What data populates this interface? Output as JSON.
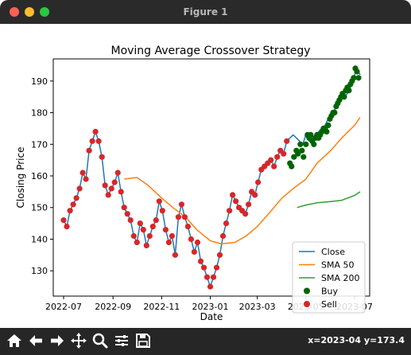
{
  "window": {
    "title": "Figure 1"
  },
  "status": {
    "coords": "x=2023-04 y=173.4"
  },
  "colors": {
    "close": "#1f77b4",
    "sma50": "#ff7f0e",
    "sma200": "#2ca02c",
    "buy": "#006400",
    "sell": "#d62728"
  },
  "toolbar": [
    "home-icon",
    "back-icon",
    "forward-icon",
    "pan-icon",
    "zoom-icon",
    "configure-icon",
    "save-icon"
  ],
  "chart_data": {
    "type": "line",
    "title": "Moving Average Crossover Strategy",
    "xlabel": "Date",
    "ylabel": "Closing Price",
    "x_ticks": [
      "2022-07",
      "2022-09",
      "2022-11",
      "2023-01",
      "2023-03",
      "2023-05",
      "2023-07"
    ],
    "y_ticks": [
      130,
      140,
      150,
      160,
      170,
      180,
      190
    ],
    "xlim": [
      "2022-06-18",
      "2023-07-20"
    ],
    "ylim": [
      122,
      197
    ],
    "legend": {
      "position": "lower right",
      "entries": [
        "Close",
        "SMA 50",
        "SMA 200",
        "Buy",
        "Sell"
      ]
    },
    "series": [
      {
        "name": "Close",
        "style": "line",
        "x": [
          "2022-07-01",
          "2022-07-05",
          "2022-07-09",
          "2022-07-13",
          "2022-07-17",
          "2022-07-21",
          "2022-07-25",
          "2022-07-29",
          "2022-08-02",
          "2022-08-06",
          "2022-08-10",
          "2022-08-14",
          "2022-08-18",
          "2022-08-22",
          "2022-08-26",
          "2022-08-30",
          "2022-09-03",
          "2022-09-07",
          "2022-09-11",
          "2022-09-15",
          "2022-09-19",
          "2022-09-23",
          "2022-09-27",
          "2022-10-01",
          "2022-10-05",
          "2022-10-09",
          "2022-10-13",
          "2022-10-17",
          "2022-10-21",
          "2022-10-25",
          "2022-10-29",
          "2022-11-02",
          "2022-11-06",
          "2022-11-10",
          "2022-11-14",
          "2022-11-18",
          "2022-11-22",
          "2022-11-26",
          "2022-11-30",
          "2022-12-04",
          "2022-12-08",
          "2022-12-12",
          "2022-12-16",
          "2022-12-20",
          "2022-12-24",
          "2022-12-28",
          "2023-01-01",
          "2023-01-05",
          "2023-01-09",
          "2023-01-13",
          "2023-01-17",
          "2023-01-21",
          "2023-01-25",
          "2023-01-29",
          "2023-02-02",
          "2023-02-06",
          "2023-02-10",
          "2023-02-14",
          "2023-02-18",
          "2023-02-22",
          "2023-02-26",
          "2023-03-02",
          "2023-03-06",
          "2023-03-10",
          "2023-03-14",
          "2023-03-18",
          "2023-03-22",
          "2023-03-26",
          "2023-03-30",
          "2023-04-03",
          "2023-04-07",
          "2023-04-11",
          "2023-04-15",
          "2023-04-19",
          "2023-04-23",
          "2023-04-27",
          "2023-05-01",
          "2023-05-05",
          "2023-05-09",
          "2023-05-13",
          "2023-05-17",
          "2023-05-21",
          "2023-05-25",
          "2023-05-29",
          "2023-06-02",
          "2023-06-06",
          "2023-06-10",
          "2023-06-14",
          "2023-06-18",
          "2023-06-22",
          "2023-06-26",
          "2023-06-30",
          "2023-07-04",
          "2023-07-08"
        ],
        "y": [
          146,
          144,
          149,
          151,
          153,
          156,
          161,
          159,
          168,
          171,
          174,
          171,
          166,
          157,
          154,
          156,
          158,
          161,
          155,
          150,
          148,
          146,
          141,
          139,
          145,
          143,
          138,
          141,
          144,
          146,
          152,
          149,
          143,
          139,
          141,
          135,
          147,
          151,
          147,
          144,
          140,
          136,
          139,
          133,
          131,
          128,
          125,
          128,
          131,
          135,
          141,
          145,
          149,
          154,
          152,
          150,
          149,
          148,
          151,
          155,
          154,
          158,
          162,
          163,
          164,
          165,
          163,
          166,
          168,
          167,
          171,
          172,
          173,
          172,
          171,
          170,
          173,
          171,
          172,
          173,
          174,
          175,
          176,
          178,
          180,
          181,
          182,
          184,
          185,
          186,
          188,
          191,
          194,
          192
        ]
      },
      {
        "name": "SMA 50",
        "style": "line",
        "x": [
          "2022-09-15",
          "2022-10-01",
          "2022-10-15",
          "2022-11-01",
          "2022-11-15",
          "2022-12-01",
          "2022-12-15",
          "2023-01-01",
          "2023-01-15",
          "2023-02-01",
          "2023-02-15",
          "2023-03-01",
          "2023-03-15",
          "2023-04-01",
          "2023-04-15",
          "2023-05-01",
          "2023-05-15",
          "2023-06-01",
          "2023-06-15",
          "2023-07-01",
          "2023-07-08"
        ],
        "y": [
          159,
          159.5,
          157,
          153,
          150,
          147,
          143,
          139.5,
          138.5,
          139,
          141,
          144,
          148,
          153,
          156,
          159,
          164,
          168,
          172,
          176,
          178.5
        ]
      },
      {
        "name": "SMA 200",
        "style": "line",
        "x": [
          "2023-04-20",
          "2023-05-01",
          "2023-05-15",
          "2023-06-01",
          "2023-06-15",
          "2023-07-01",
          "2023-07-08"
        ],
        "y": [
          150,
          150.8,
          151.5,
          151.9,
          152.3,
          153.8,
          155
        ]
      },
      {
        "name": "Buy",
        "style": "scatter",
        "x": [
          "2023-04-11",
          "2023-04-13",
          "2023-04-16",
          "2023-04-19",
          "2023-04-21",
          "2023-04-24",
          "2023-04-26",
          "2023-04-28",
          "2023-05-01",
          "2023-05-03",
          "2023-05-05",
          "2023-05-07",
          "2023-05-09",
          "2023-05-11",
          "2023-05-13",
          "2023-05-15",
          "2023-05-17",
          "2023-05-19",
          "2023-05-21",
          "2023-05-23",
          "2023-05-25",
          "2023-05-27",
          "2023-05-29",
          "2023-05-31",
          "2023-06-02",
          "2023-06-04",
          "2023-06-06",
          "2023-06-08",
          "2023-06-10",
          "2023-06-12",
          "2023-06-14",
          "2023-06-16",
          "2023-06-18",
          "2023-06-20",
          "2023-06-22",
          "2023-06-24",
          "2023-06-26",
          "2023-06-28",
          "2023-06-30",
          "2023-07-02",
          "2023-07-04",
          "2023-07-06"
        ],
        "y": [
          164,
          163,
          166,
          168,
          167,
          170,
          168,
          166,
          170,
          173,
          172,
          173,
          171,
          170,
          172,
          173,
          172,
          173,
          174,
          175,
          175,
          174,
          176,
          178,
          179,
          180,
          180,
          182,
          183,
          184,
          185,
          186,
          185,
          187,
          188,
          187,
          189,
          190,
          191,
          194,
          193,
          191
        ]
      },
      {
        "name": "Sell",
        "style": "scatter",
        "x": [
          "2022-07-01",
          "2022-07-05",
          "2022-07-09",
          "2022-07-13",
          "2022-07-17",
          "2022-07-21",
          "2022-07-25",
          "2022-07-29",
          "2022-08-02",
          "2022-08-06",
          "2022-08-10",
          "2022-08-14",
          "2022-08-18",
          "2022-08-22",
          "2022-08-26",
          "2022-08-30",
          "2022-09-03",
          "2022-09-07",
          "2022-09-11",
          "2022-09-15",
          "2022-09-19",
          "2022-09-23",
          "2022-09-27",
          "2022-10-01",
          "2022-10-05",
          "2022-10-09",
          "2022-10-13",
          "2022-10-17",
          "2022-10-21",
          "2022-10-25",
          "2022-10-29",
          "2022-11-02",
          "2022-11-06",
          "2022-11-10",
          "2022-11-14",
          "2022-11-18",
          "2022-11-22",
          "2022-11-26",
          "2022-11-30",
          "2022-12-04",
          "2022-12-08",
          "2022-12-12",
          "2022-12-16",
          "2022-12-20",
          "2022-12-24",
          "2022-12-28",
          "2023-01-01",
          "2023-01-05",
          "2023-01-09",
          "2023-01-13",
          "2023-01-17",
          "2023-01-21",
          "2023-01-25",
          "2023-01-29",
          "2023-02-02",
          "2023-02-06",
          "2023-02-10",
          "2023-02-14",
          "2023-02-18",
          "2023-02-22",
          "2023-02-26",
          "2023-03-02",
          "2023-03-06",
          "2023-03-10",
          "2023-03-14",
          "2023-03-18",
          "2023-03-22",
          "2023-03-26",
          "2023-03-30",
          "2023-04-03",
          "2023-04-07"
        ],
        "y": [
          146,
          144,
          149,
          151,
          153,
          156,
          161,
          159,
          168,
          171,
          174,
          171,
          166,
          157,
          154,
          156,
          158,
          161,
          155,
          150,
          148,
          146,
          141,
          139,
          145,
          143,
          138,
          141,
          144,
          146,
          152,
          149,
          143,
          139,
          141,
          135,
          147,
          151,
          147,
          144,
          140,
          136,
          139,
          133,
          131,
          128,
          125,
          128,
          131,
          135,
          141,
          145,
          149,
          154,
          152,
          150,
          149,
          148,
          151,
          155,
          154,
          158,
          162,
          163,
          164,
          165,
          163,
          166,
          168,
          167,
          171
        ]
      }
    ]
  }
}
